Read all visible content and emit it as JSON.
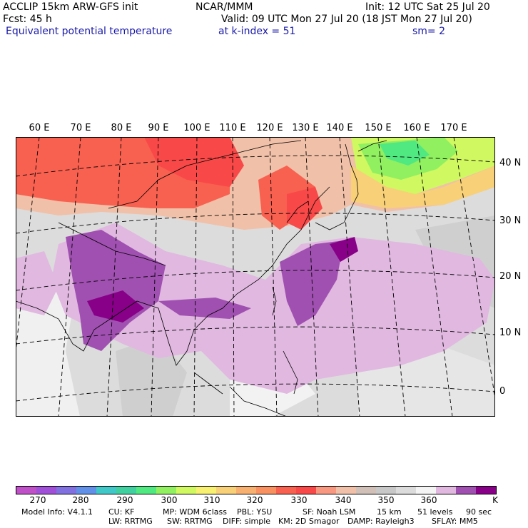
{
  "header": {
    "line1_left": "ACCLIP 15km ARW-GFS init",
    "line1_center": "NCAR/MMM",
    "line1_right": "Init: 12 UTC Sat 25 Jul 20",
    "line2_left": "Fcst:    45 h",
    "line2_right": "Valid: 09 UTC Mon 27 Jul 20 (18 JST Mon 27 Jul 20)",
    "line3_left": "Equivalent potential temperature",
    "line3_center": "at k-index =   51",
    "line3_right": "sm= 2"
  },
  "map": {
    "lon_labels": [
      "60 E",
      "70 E",
      "80 E",
      "90 E",
      "100 E",
      "110 E",
      "120 E",
      "130 E",
      "140 E",
      "150 E",
      "160 E",
      "170 E"
    ],
    "lat_labels": [
      "40 N",
      "30 N",
      "20 N",
      "10 N",
      "0"
    ]
  },
  "colorbar": {
    "colors": [
      "#c050c8",
      "#a050d8",
      "#8070e0",
      "#6090e8",
      "#40c8c8",
      "#40d0a0",
      "#50e880",
      "#90f060",
      "#d0f860",
      "#f8f070",
      "#f8d078",
      "#f8b070",
      "#f89060",
      "#f86050",
      "#f84848",
      "#f89880",
      "#f0c0a8",
      "#d0c0b8",
      "#c8c8c8",
      "#dcdcdc",
      "#f4f4f4",
      "#e0b8e0",
      "#a050b0",
      "#880088"
    ],
    "labels": [
      "270",
      "280",
      "290",
      "300",
      "310",
      "320",
      "330",
      "340",
      "350",
      "360"
    ],
    "unit": "K"
  },
  "model_info": {
    "line1": [
      "Model Info: V4.1.1",
      "CU: KF",
      "MP: WDM 6class",
      "PBL: YSU",
      "SF: Noah LSM",
      "15 km",
      "51 levels",
      "90 sec"
    ],
    "line2": [
      "LW: RRTMG",
      "SW: RRTMG",
      "DIFF: simple",
      "KM: 2D Smagor",
      "DAMP: Rayleigh3",
      "SFLAY: MM5"
    ]
  }
}
